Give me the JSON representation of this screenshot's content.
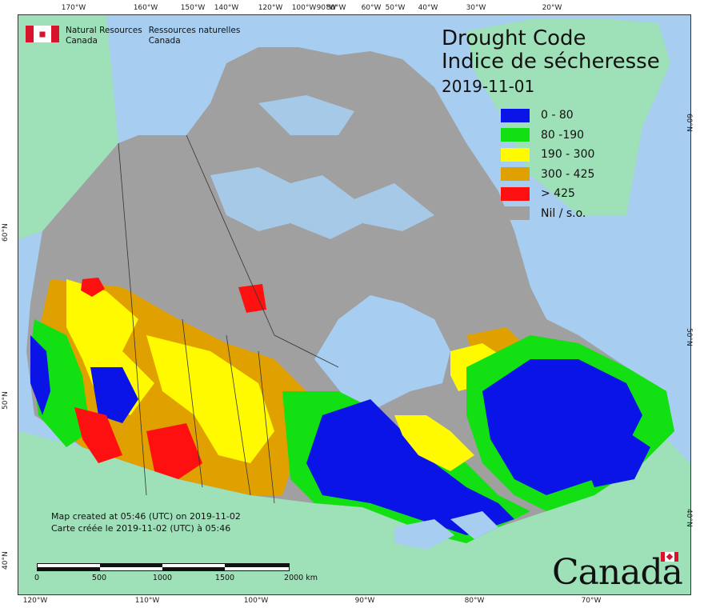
{
  "title": {
    "en": "Drought Code",
    "fr": "Indice de sécheresse",
    "date": "2019-11-01"
  },
  "agency": {
    "en_line1": "Natural Resources",
    "en_line2": "Canada",
    "fr_line1": "Ressources naturelles",
    "fr_line2": "Canada"
  },
  "legend": [
    {
      "label": "0 - 80",
      "color": "#0a14e6"
    },
    {
      "label": "80 -190",
      "color": "#12e012"
    },
    {
      "label": "190 - 300",
      "color": "#fffa00"
    },
    {
      "label": "300 - 425",
      "color": "#e0a000"
    },
    {
      "label": "> 425",
      "color": "#ff1010"
    },
    {
      "label": "Nil / s.o.",
      "color": "#a0a0a0"
    }
  ],
  "credit": {
    "line1": "Map created at 05:46 (UTC) on 2019-11-02",
    "line2": "Carte créée le 2019-11-02 (UTC) à 05:46"
  },
  "scale": {
    "labels": [
      "0",
      "500",
      "1000",
      "1500",
      "2000  km"
    ]
  },
  "wordmark": "Canada",
  "graticule": {
    "top": [
      "170°W",
      "160°W",
      "150°W",
      "140°W",
      "120°W",
      "100°W",
      "90°W",
      "80°W",
      "60°W",
      "50°W",
      "40°W",
      "30°W",
      "20°W"
    ],
    "bottom": [
      "120°W",
      "110°W",
      "100°W",
      "90°W",
      "80°W",
      "70°W"
    ],
    "left": [
      "60°N",
      "50°N",
      "40°N"
    ],
    "right": [
      "60°N",
      "50°N",
      "40°N"
    ]
  },
  "colors": {
    "ocean": "#a7cdf0",
    "foreign_land": "#9ee0b8",
    "no_data": "#a0a0a0",
    "water_bodies": "#a7cdf0"
  }
}
